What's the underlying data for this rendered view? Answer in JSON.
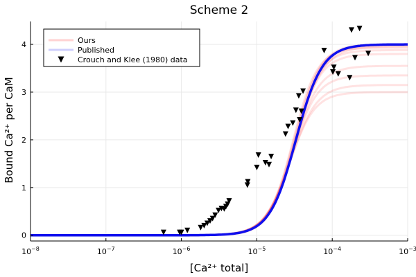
{
  "chart_data": {
    "type": "line",
    "title": "Scheme 2",
    "xlabel": "[Ca²⁺ total]",
    "ylabel": "Bound Ca²⁺ per CaM",
    "xscale": "log",
    "xlim": [
      1e-08,
      0.001
    ],
    "ylim": [
      -0.12,
      4.48
    ],
    "grid": true,
    "legend_position": "top-left",
    "x_ticks": [
      {
        "base": "10",
        "exp": "−8"
      },
      {
        "base": "10",
        "exp": "−7"
      },
      {
        "base": "10",
        "exp": "−6"
      },
      {
        "base": "10",
        "exp": "−5"
      },
      {
        "base": "10",
        "exp": "−4"
      },
      {
        "base": "10",
        "exp": "−3"
      }
    ],
    "y_ticks": [
      "0",
      "1",
      "2",
      "3",
      "4"
    ],
    "series": [
      {
        "name": "Ours",
        "style": "line",
        "color": "#ff2020",
        "curves": [
          {
            "max": 4.0,
            "k": 3.2e-05,
            "n": 2.6
          },
          {
            "max": 3.98,
            "k": 3.1e-05,
            "n": 2.5
          },
          {
            "max": 3.96,
            "k": 3.3e-05,
            "n": 2.4
          },
          {
            "max": 3.93,
            "k": 3e-05,
            "n": 2.7
          },
          {
            "max": 3.88,
            "k": 3.2e-05,
            "n": 2.6
          },
          {
            "max": 3.8,
            "k": 3.1e-05,
            "n": 2.5
          },
          {
            "max": 3.55,
            "k": 3e-05,
            "n": 2.5
          },
          {
            "max": 3.35,
            "k": 2.9e-05,
            "n": 2.6
          },
          {
            "max": 3.15,
            "k": 2.8e-05,
            "n": 2.5
          },
          {
            "max": 3.0,
            "k": 2.7e-05,
            "n": 2.6
          }
        ]
      },
      {
        "name": "Published",
        "style": "line",
        "color": "#1010ee",
        "curves": [
          {
            "max": 4.0,
            "k": 3.3e-05,
            "n": 2.5
          }
        ]
      },
      {
        "name": "Crouch and Klee (1980) data",
        "style": "marker",
        "marker": "triangle-down",
        "color": "#000000",
        "x": [
          5.8e-07,
          9.5e-07,
          1e-06,
          1.2e-06,
          1.8e-06,
          2e-06,
          2.2e-06,
          2.4e-06,
          2.6e-06,
          2.8e-06,
          3.1e-06,
          3.4e-06,
          3.7e-06,
          3.9e-06,
          4.1e-06,
          4.3e-06,
          7.5e-06,
          7.6e-06,
          1e-05,
          1.05e-05,
          1.3e-05,
          1.45e-05,
          1.55e-05,
          2.4e-05,
          2.6e-05,
          3e-05,
          3.3e-05,
          3.6e-05,
          3.7e-05,
          3.9e-05,
          4.1e-05,
          7.8e-05,
          0.000102,
          0.000105,
          0.00012,
          0.00017,
          0.00018,
          0.0002,
          0.00023,
          0.0003
        ],
        "values": [
          0.06,
          0.06,
          0.06,
          0.1,
          0.16,
          0.2,
          0.25,
          0.3,
          0.35,
          0.42,
          0.52,
          0.56,
          0.55,
          0.6,
          0.65,
          0.72,
          1.05,
          1.12,
          1.42,
          1.68,
          1.52,
          1.48,
          1.65,
          2.12,
          2.28,
          2.35,
          2.62,
          2.92,
          2.42,
          2.6,
          3.02,
          3.87,
          3.42,
          3.52,
          3.38,
          3.3,
          4.3,
          3.72,
          4.33,
          3.81
        ]
      }
    ]
  }
}
